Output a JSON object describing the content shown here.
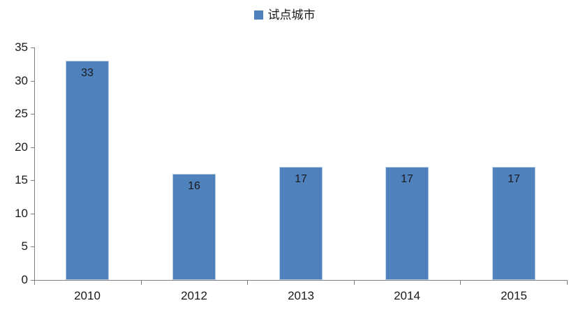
{
  "chart_data": {
    "type": "bar",
    "title": "",
    "categories": [
      "2010",
      "2012",
      "2013",
      "2014",
      "2015"
    ],
    "series": [
      {
        "name": "试点城市",
        "values": [
          33,
          16,
          17,
          17,
          17
        ]
      }
    ],
    "value_labels": [
      "33",
      "16",
      "17",
      "17",
      "17"
    ],
    "show_value_labels": true,
    "xlabel": "",
    "ylabel": "",
    "ylim": [
      0,
      35
    ],
    "yticks": [
      0,
      5,
      10,
      15,
      20,
      25,
      30,
      35
    ],
    "grid": false,
    "legend_position": "top-center",
    "colors": {
      "bar": "#4F81BD",
      "bar_border": "#b8cce4",
      "axis": "#7f7f7f",
      "text": "#1a1a1a"
    }
  }
}
